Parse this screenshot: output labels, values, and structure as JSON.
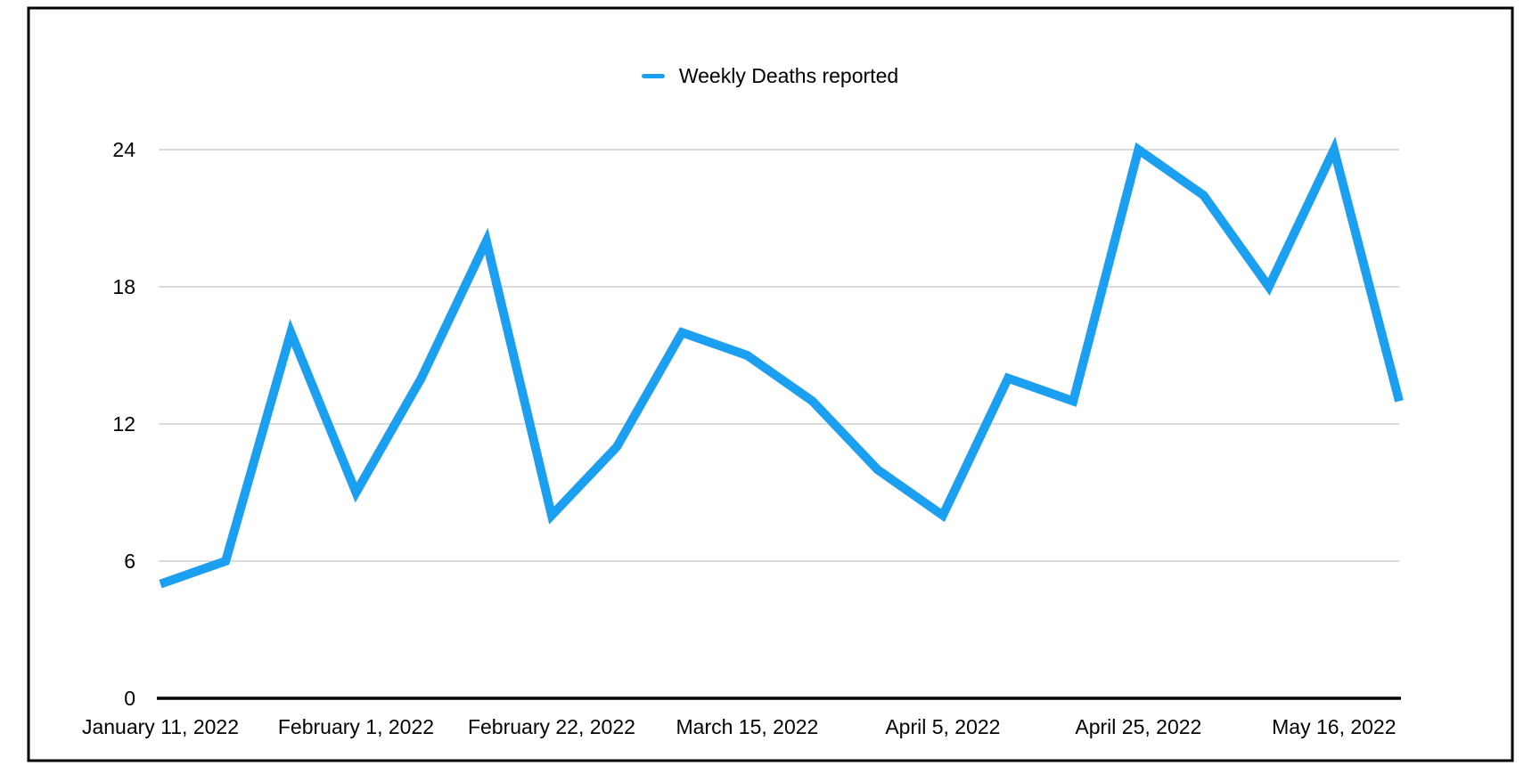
{
  "legend": {
    "label": "Weekly Deaths reported"
  },
  "colors": {
    "line": "#1B9FF0",
    "grid": "#C7C7C7",
    "axis": "#000000",
    "frame": "#000000",
    "text": "#000000",
    "background": "#FFFFFF"
  },
  "chart_data": {
    "type": "line",
    "title": "",
    "xlabel": "",
    "ylabel": "",
    "x": [
      "January 11, 2022",
      "January 18, 2022",
      "January 25, 2022",
      "February 1, 2022",
      "February 8, 2022",
      "February 15, 2022",
      "February 22, 2022",
      "March 1, 2022",
      "March 8, 2022",
      "March 15, 2022",
      "March 22, 2022",
      "March 29, 2022",
      "April 5, 2022",
      "April 12, 2022",
      "April 19, 2022",
      "April 25, 2022",
      "May 2, 2022",
      "May 9, 2022",
      "May 16, 2022",
      "May 23, 2022"
    ],
    "series": [
      {
        "name": "Weekly Deaths reported",
        "color": "#1B9FF0",
        "values": [
          5,
          6,
          16,
          9,
          14,
          20,
          8,
          11,
          16,
          15,
          13,
          10,
          8,
          14,
          13,
          24,
          22,
          18,
          24,
          13
        ]
      }
    ],
    "x_ticks": [
      {
        "i": 0,
        "label": "January 11, 2022"
      },
      {
        "i": 3,
        "label": "February 1, 2022"
      },
      {
        "i": 6,
        "label": "February 22, 2022"
      },
      {
        "i": 9,
        "label": "March 15, 2022"
      },
      {
        "i": 12,
        "label": "April 5, 2022"
      },
      {
        "i": 15,
        "label": "April 25, 2022"
      },
      {
        "i": 18,
        "label": "May 16, 2022"
      }
    ],
    "y_ticks": [
      0,
      6,
      12,
      18,
      24
    ],
    "ylim": [
      0,
      24
    ],
    "grid": "horizontal-only",
    "legend_position": "top-center"
  }
}
